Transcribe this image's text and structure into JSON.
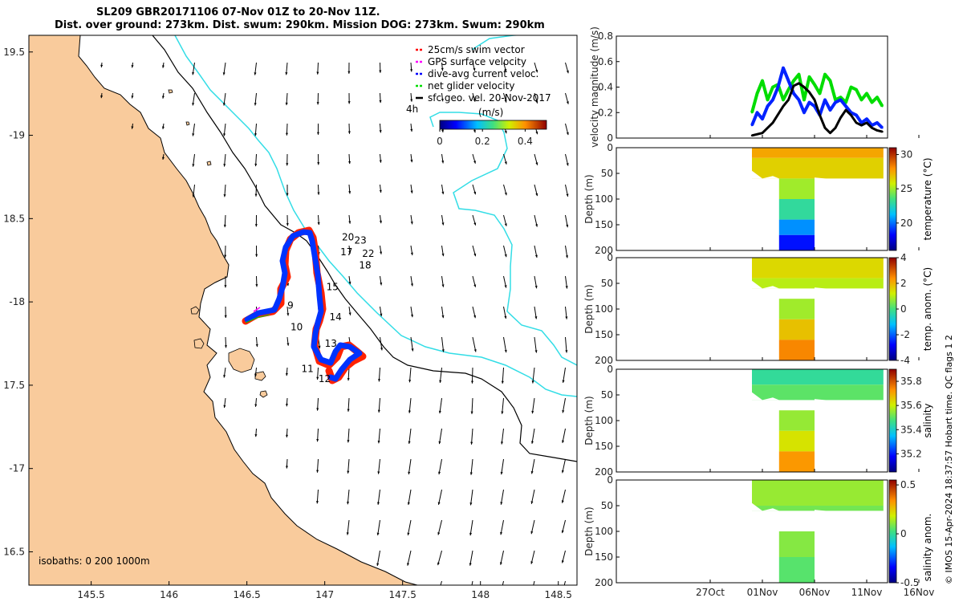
{
  "title_line1": "SL209 GBR20171106 07-Nov 01Z to 20-Nov 11Z.",
  "title_line2": "Dist. over ground: 273km. Dist. swum: 290km. Mission DOG: 273km. Swum: 290km",
  "colors": {
    "land": "#f9cb9c",
    "coast": "#000000",
    "isobath200": "#000000",
    "isobath1000": "#33dde6",
    "track": "#0033ff",
    "swim": "#ff2200"
  },
  "map": {
    "xlim": [
      145.1,
      148.62
    ],
    "ylim": [
      19.6,
      16.3
    ],
    "xticks": [
      145.5,
      146,
      146.5,
      147,
      147.5,
      148,
      148.5
    ],
    "xtick_labels": [
      "145.5",
      "146",
      "146.5",
      "147",
      "147.5",
      "148",
      "148.5"
    ],
    "yticks": [
      16.5,
      17,
      17.5,
      18,
      18.5,
      19,
      19.5
    ],
    "ytick_labels": [
      "16.5",
      "-17",
      "17.5",
      "-18",
      "18.5",
      "-19",
      "19.5"
    ],
    "isobaths_text": "isobaths: 0   200  1000m",
    "legend": [
      {
        "label": "25cm/s swim vector",
        "color": "#ff0000"
      },
      {
        "label": "GPS surface velocity",
        "color": "#ff00ff"
      },
      {
        "label": "dive-avg current veloc.",
        "color": "#0000ff"
      },
      {
        "label": "net glider velocity",
        "color": "#00dd00"
      },
      {
        "label": "sfc geo. vel. 20-Nov-2017",
        "color": "#000000"
      }
    ],
    "label_4h": "4h",
    "colorbar": {
      "title": "(m/s)",
      "range": [
        0,
        0.5
      ],
      "ticks": [
        "0",
        "0.2",
        "0.4"
      ]
    },
    "day_labels": [
      {
        "text": "9",
        "lon": 146.76,
        "lat": 17.96
      },
      {
        "text": "10",
        "lon": 146.78,
        "lat": 17.83
      },
      {
        "text": "11",
        "lon": 146.85,
        "lat": 17.58
      },
      {
        "text": "12",
        "lon": 146.96,
        "lat": 17.52
      },
      {
        "text": "13",
        "lon": 147.0,
        "lat": 17.73
      },
      {
        "text": "14",
        "lon": 147.03,
        "lat": 17.89
      },
      {
        "text": "15",
        "lon": 147.01,
        "lat": 18.07
      },
      {
        "text": "18",
        "lon": 147.22,
        "lat": 18.2
      },
      {
        "text": "17",
        "lon": 147.1,
        "lat": 18.28
      },
      {
        "text": "22",
        "lon": 147.24,
        "lat": 18.27
      },
      {
        "text": "23",
        "lon": 147.19,
        "lat": 18.35
      },
      {
        "text": "20",
        "lon": 147.11,
        "lat": 18.37
      }
    ]
  },
  "chart_data": [
    {
      "type": "line",
      "title": "velocity magnitude",
      "ylabel": "velocity magnitude (m/s)",
      "ylim": [
        0,
        0.8
      ],
      "yticks": [
        "0",
        "0.2",
        "0.4",
        "0.6",
        "0.8"
      ],
      "xlim_days": [
        18,
        44
      ],
      "series": [
        {
          "name": "net glider velocity",
          "color": "#00dd00",
          "x": [
            31,
            31.5,
            32,
            32.5,
            33,
            33.5,
            34,
            34.5,
            35,
            35.5,
            36,
            36.5,
            37,
            37.5,
            38,
            38.5,
            39,
            39.5,
            40,
            40.5,
            41,
            41.5,
            42,
            42.5,
            43,
            43.5
          ],
          "y": [
            0.2,
            0.35,
            0.45,
            0.3,
            0.4,
            0.42,
            0.3,
            0.38,
            0.45,
            0.5,
            0.3,
            0.48,
            0.42,
            0.35,
            0.5,
            0.45,
            0.3,
            0.32,
            0.28,
            0.4,
            0.38,
            0.3,
            0.35,
            0.28,
            0.32,
            0.25
          ]
        },
        {
          "name": "dive-avg current veloc.",
          "color": "#0022ff",
          "x": [
            31,
            31.5,
            32,
            32.5,
            33,
            33.5,
            34,
            34.5,
            35,
            35.5,
            36,
            36.5,
            37,
            37.5,
            38,
            38.5,
            39,
            39.5,
            40,
            40.5,
            41,
            41.5,
            42,
            42.5,
            43,
            43.5
          ],
          "y": [
            0.1,
            0.2,
            0.15,
            0.25,
            0.3,
            0.4,
            0.55,
            0.45,
            0.35,
            0.3,
            0.2,
            0.28,
            0.25,
            0.18,
            0.3,
            0.22,
            0.28,
            0.3,
            0.25,
            0.2,
            0.18,
            0.12,
            0.15,
            0.1,
            0.12,
            0.08
          ]
        },
        {
          "name": "sfc geo. vel.",
          "color": "#000000",
          "x": [
            31,
            32,
            33,
            34,
            34.5,
            35,
            35.5,
            36,
            36.5,
            37,
            37.5,
            38,
            38.5,
            39,
            39.5,
            40,
            40.5,
            41,
            41.5,
            42,
            42.5,
            43,
            43.5
          ],
          "y": [
            0.02,
            0.04,
            0.12,
            0.25,
            0.3,
            0.41,
            0.43,
            0.4,
            0.36,
            0.3,
            0.18,
            0.08,
            0.04,
            0.08,
            0.16,
            0.22,
            0.18,
            0.12,
            0.1,
            0.12,
            0.08,
            0.06,
            0.05
          ]
        }
      ]
    },
    {
      "type": "heatmap",
      "name": "temperature",
      "clabel": "temperature (°C)",
      "ylabel": "Depth (m)",
      "yticks": [
        "0",
        "50",
        "100",
        "150",
        "200"
      ],
      "crange": [
        16,
        31
      ],
      "cticks": [
        "30",
        "25",
        "20"
      ],
      "bands": [
        [
          0,
          20,
          27.5
        ],
        [
          20,
          60,
          26.5
        ],
        [
          60,
          100,
          25
        ],
        [
          100,
          140,
          23
        ],
        [
          140,
          170,
          20.5
        ],
        [
          170,
          200,
          18.5
        ]
      ]
    },
    {
      "type": "heatmap",
      "name": "temp. anom.",
      "clabel": "temp. anom. (°C)",
      "ylabel": "Depth (m)",
      "yticks": [
        "0",
        "50",
        "100",
        "150",
        "200"
      ],
      "crange": [
        -4,
        4
      ],
      "cticks": [
        "4",
        "2",
        "0",
        "-2",
        "-4"
      ],
      "bands": [
        [
          0,
          40,
          1.5
        ],
        [
          40,
          80,
          1
        ],
        [
          80,
          120,
          0.8
        ],
        [
          120,
          160,
          1.8
        ],
        [
          160,
          200,
          2.5
        ]
      ]
    },
    {
      "type": "heatmap",
      "name": "salinity",
      "clabel": "salinity",
      "ylabel": "Depth (m)",
      "yticks": [
        "0",
        "50",
        "100",
        "150",
        "200"
      ],
      "crange": [
        35.05,
        35.9
      ],
      "cticks": [
        "35.8",
        "35.6",
        "35.4",
        "35.2"
      ],
      "bands": [
        [
          0,
          30,
          35.45
        ],
        [
          30,
          80,
          35.5
        ],
        [
          80,
          120,
          35.55
        ],
        [
          120,
          160,
          35.62
        ],
        [
          160,
          200,
          35.72
        ]
      ]
    },
    {
      "type": "heatmap",
      "name": "salinity anom.",
      "clabel": "salinity anom.",
      "ylabel": "Depth (m)",
      "yticks": [
        "0",
        "50",
        "100",
        "150",
        "200"
      ],
      "crange": [
        -0.5,
        0.55
      ],
      "cticks": [
        "0.5",
        "0",
        "-0.5"
      ],
      "bands": [
        [
          0,
          50,
          0.12
        ],
        [
          50,
          100,
          0.08
        ],
        [
          100,
          150,
          0.1
        ],
        [
          150,
          200,
          0.05
        ]
      ]
    }
  ],
  "time_ticks": [
    "27Oct",
    "01Nov",
    "06Nov",
    "11Nov",
    "16Nov"
  ],
  "credit": "© IMOS 15-Apr-2024 18:37:57 Hobart time. QC flags 1  2"
}
